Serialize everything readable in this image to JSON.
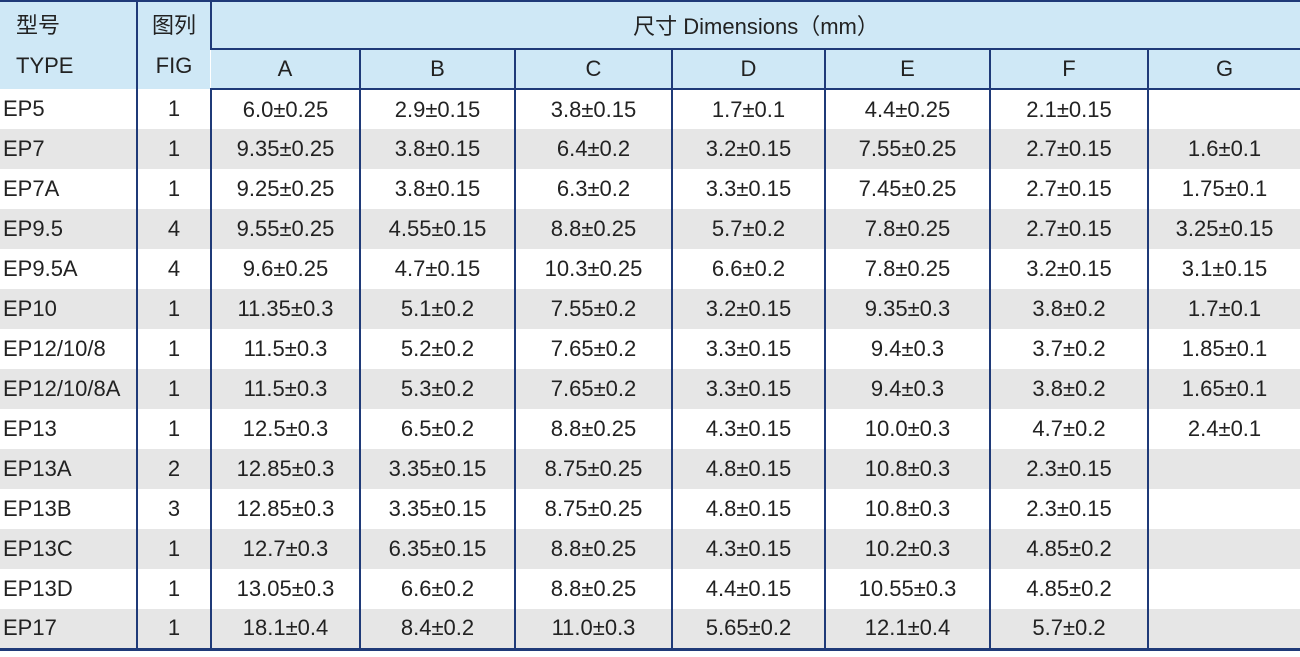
{
  "header": {
    "type_cn": "型号",
    "type_en": "TYPE",
    "fig_cn": "图列",
    "fig_en": "FIG",
    "dimensions": "尺寸 Dimensions（mm）",
    "columns": [
      "A",
      "B",
      "C",
      "D",
      "E",
      "F",
      "G"
    ]
  },
  "table": {
    "rows": [
      [
        "EP5",
        "1",
        "6.0±0.25",
        "2.9±0.15",
        "3.8±0.15",
        "1.7±0.1",
        "4.4±0.25",
        "2.1±0.15"
      ],
      [
        "EP7",
        "1",
        "9.35±0.25",
        "3.8±0.15",
        "6.4±0.2",
        "3.2±0.15",
        "7.55±0.25",
        "2.7±0.15",
        "1.6±0.1"
      ],
      [
        "EP7A",
        "1",
        "9.25±0.25",
        "3.8±0.15",
        "6.3±0.2",
        "3.3±0.15",
        "7.45±0.25",
        "2.7±0.15",
        "1.75±0.1"
      ],
      [
        "EP9.5",
        "4",
        "9.55±0.25",
        "4.55±0.15",
        "8.8±0.25",
        "5.7±0.2",
        "7.8±0.25",
        "2.7±0.15",
        "3.25±0.15"
      ],
      [
        "EP9.5A",
        "4",
        "9.6±0.25",
        "4.7±0.15",
        "10.3±0.25",
        "6.6±0.2",
        "7.8±0.25",
        "3.2±0.15",
        "3.1±0.15"
      ],
      [
        "EP10",
        "1",
        "11.35±0.3",
        "5.1±0.2",
        "7.55±0.2",
        "3.2±0.15",
        "9.35±0.3",
        "3.8±0.2",
        "1.7±0.1"
      ],
      [
        "EP12/10/8",
        "1",
        "11.5±0.3",
        "5.2±0.2",
        "7.65±0.2",
        "3.3±0.15",
        "9.4±0.3",
        "3.7±0.2",
        "1.85±0.1"
      ],
      [
        "EP12/10/8A",
        "1",
        "11.5±0.3",
        "5.3±0.2",
        "7.65±0.2",
        "3.3±0.15",
        "9.4±0.3",
        "3.8±0.2",
        "1.65±0.1"
      ],
      [
        "EP13",
        "1",
        "12.5±0.3",
        "6.5±0.2",
        "8.8±0.25",
        "4.3±0.15",
        "10.0±0.3",
        "4.7±0.2",
        "2.4±0.1"
      ],
      [
        "EP13A",
        "2",
        "12.85±0.3",
        "3.35±0.15",
        "8.75±0.25",
        "4.8±0.15",
        "10.8±0.3",
        "2.3±0.15"
      ],
      [
        "EP13B",
        "3",
        "12.85±0.3",
        "3.35±0.15",
        "8.75±0.25",
        "4.8±0.15",
        "10.8±0.3",
        "2.3±0.15"
      ],
      [
        "EP13C",
        "1",
        "12.7±0.3",
        "6.35±0.15",
        "8.8±0.25",
        "4.3±0.15",
        "10.2±0.3",
        "4.85±0.2"
      ],
      [
        "EP13D",
        "1",
        "13.05±0.3",
        "6.6±0.2",
        "8.8±0.25",
        "4.4±0.15",
        "10.55±0.3",
        "4.85±0.2"
      ],
      [
        "EP17",
        "1",
        "18.1±0.4",
        "8.4±0.2",
        "11.0±0.3",
        "5.65±0.2",
        "12.1±0.4",
        "5.7±0.2"
      ]
    ]
  }
}
